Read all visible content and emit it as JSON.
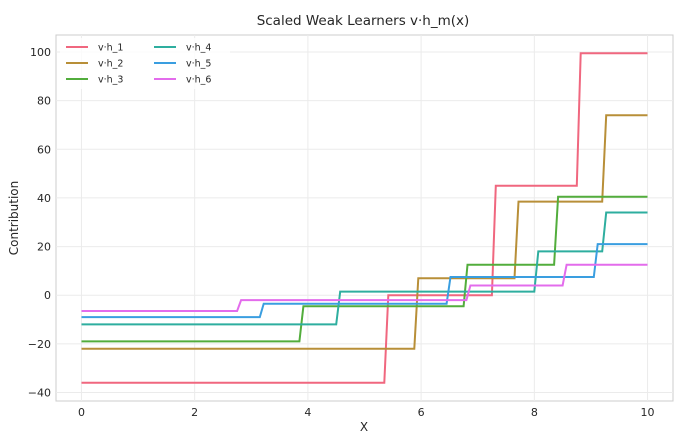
{
  "chart_data": {
    "type": "line",
    "title": "Scaled Weak Learners v·h_m(x)",
    "xlabel": "X",
    "ylabel": "Contribution",
    "xlim": [
      -0.45,
      10.45
    ],
    "ylim": [
      -43.5,
      107
    ],
    "xticks": [
      0,
      2,
      4,
      6,
      8,
      10
    ],
    "yticks": [
      -40,
      -20,
      0,
      20,
      40,
      60,
      80,
      100
    ],
    "grid": true,
    "legend_position": "top-left",
    "legend_columns": 2,
    "series": [
      {
        "name": "v·h_1",
        "color": "#f0677f",
        "points": [
          [
            0,
            -36
          ],
          [
            5.35,
            -36
          ],
          [
            5.42,
            0
          ],
          [
            7.25,
            0
          ],
          [
            7.32,
            45
          ],
          [
            8.75,
            45
          ],
          [
            8.82,
            99.5
          ],
          [
            10,
            99.5
          ]
        ]
      },
      {
        "name": "v·h_2",
        "color": "#b88f38",
        "points": [
          [
            0,
            -22
          ],
          [
            5.88,
            -22
          ],
          [
            5.95,
            7
          ],
          [
            7.65,
            7
          ],
          [
            7.72,
            38.5
          ],
          [
            9.2,
            38.5
          ],
          [
            9.27,
            74
          ],
          [
            10,
            74
          ]
        ]
      },
      {
        "name": "v·h_3",
        "color": "#52ad3c",
        "points": [
          [
            0,
            -19
          ],
          [
            3.85,
            -19
          ],
          [
            3.92,
            -4.5
          ],
          [
            6.75,
            -4.5
          ],
          [
            6.82,
            12.5
          ],
          [
            8.35,
            12.5
          ],
          [
            8.42,
            40.5
          ],
          [
            10,
            40.5
          ]
        ]
      },
      {
        "name": "v·h_4",
        "color": "#2eae9f",
        "points": [
          [
            0,
            -12
          ],
          [
            4.5,
            -12
          ],
          [
            4.57,
            1.5
          ],
          [
            8,
            1.5
          ],
          [
            8.07,
            18
          ],
          [
            9.2,
            18
          ],
          [
            9.27,
            34
          ],
          [
            10,
            34
          ]
        ]
      },
      {
        "name": "v·h_5",
        "color": "#3a9ee0",
        "points": [
          [
            0,
            -9
          ],
          [
            3.15,
            -9
          ],
          [
            3.22,
            -3.5
          ],
          [
            6.45,
            -3.5
          ],
          [
            6.52,
            7.5
          ],
          [
            9.05,
            7.5
          ],
          [
            9.12,
            21
          ],
          [
            10,
            21
          ]
        ]
      },
      {
        "name": "v·h_6",
        "color": "#e36cec",
        "points": [
          [
            0,
            -6.5
          ],
          [
            2.75,
            -6.5
          ],
          [
            2.82,
            -2
          ],
          [
            6.8,
            -2
          ],
          [
            6.87,
            4
          ],
          [
            8.5,
            4
          ],
          [
            8.57,
            12.5
          ],
          [
            10,
            12.5
          ]
        ]
      }
    ]
  }
}
